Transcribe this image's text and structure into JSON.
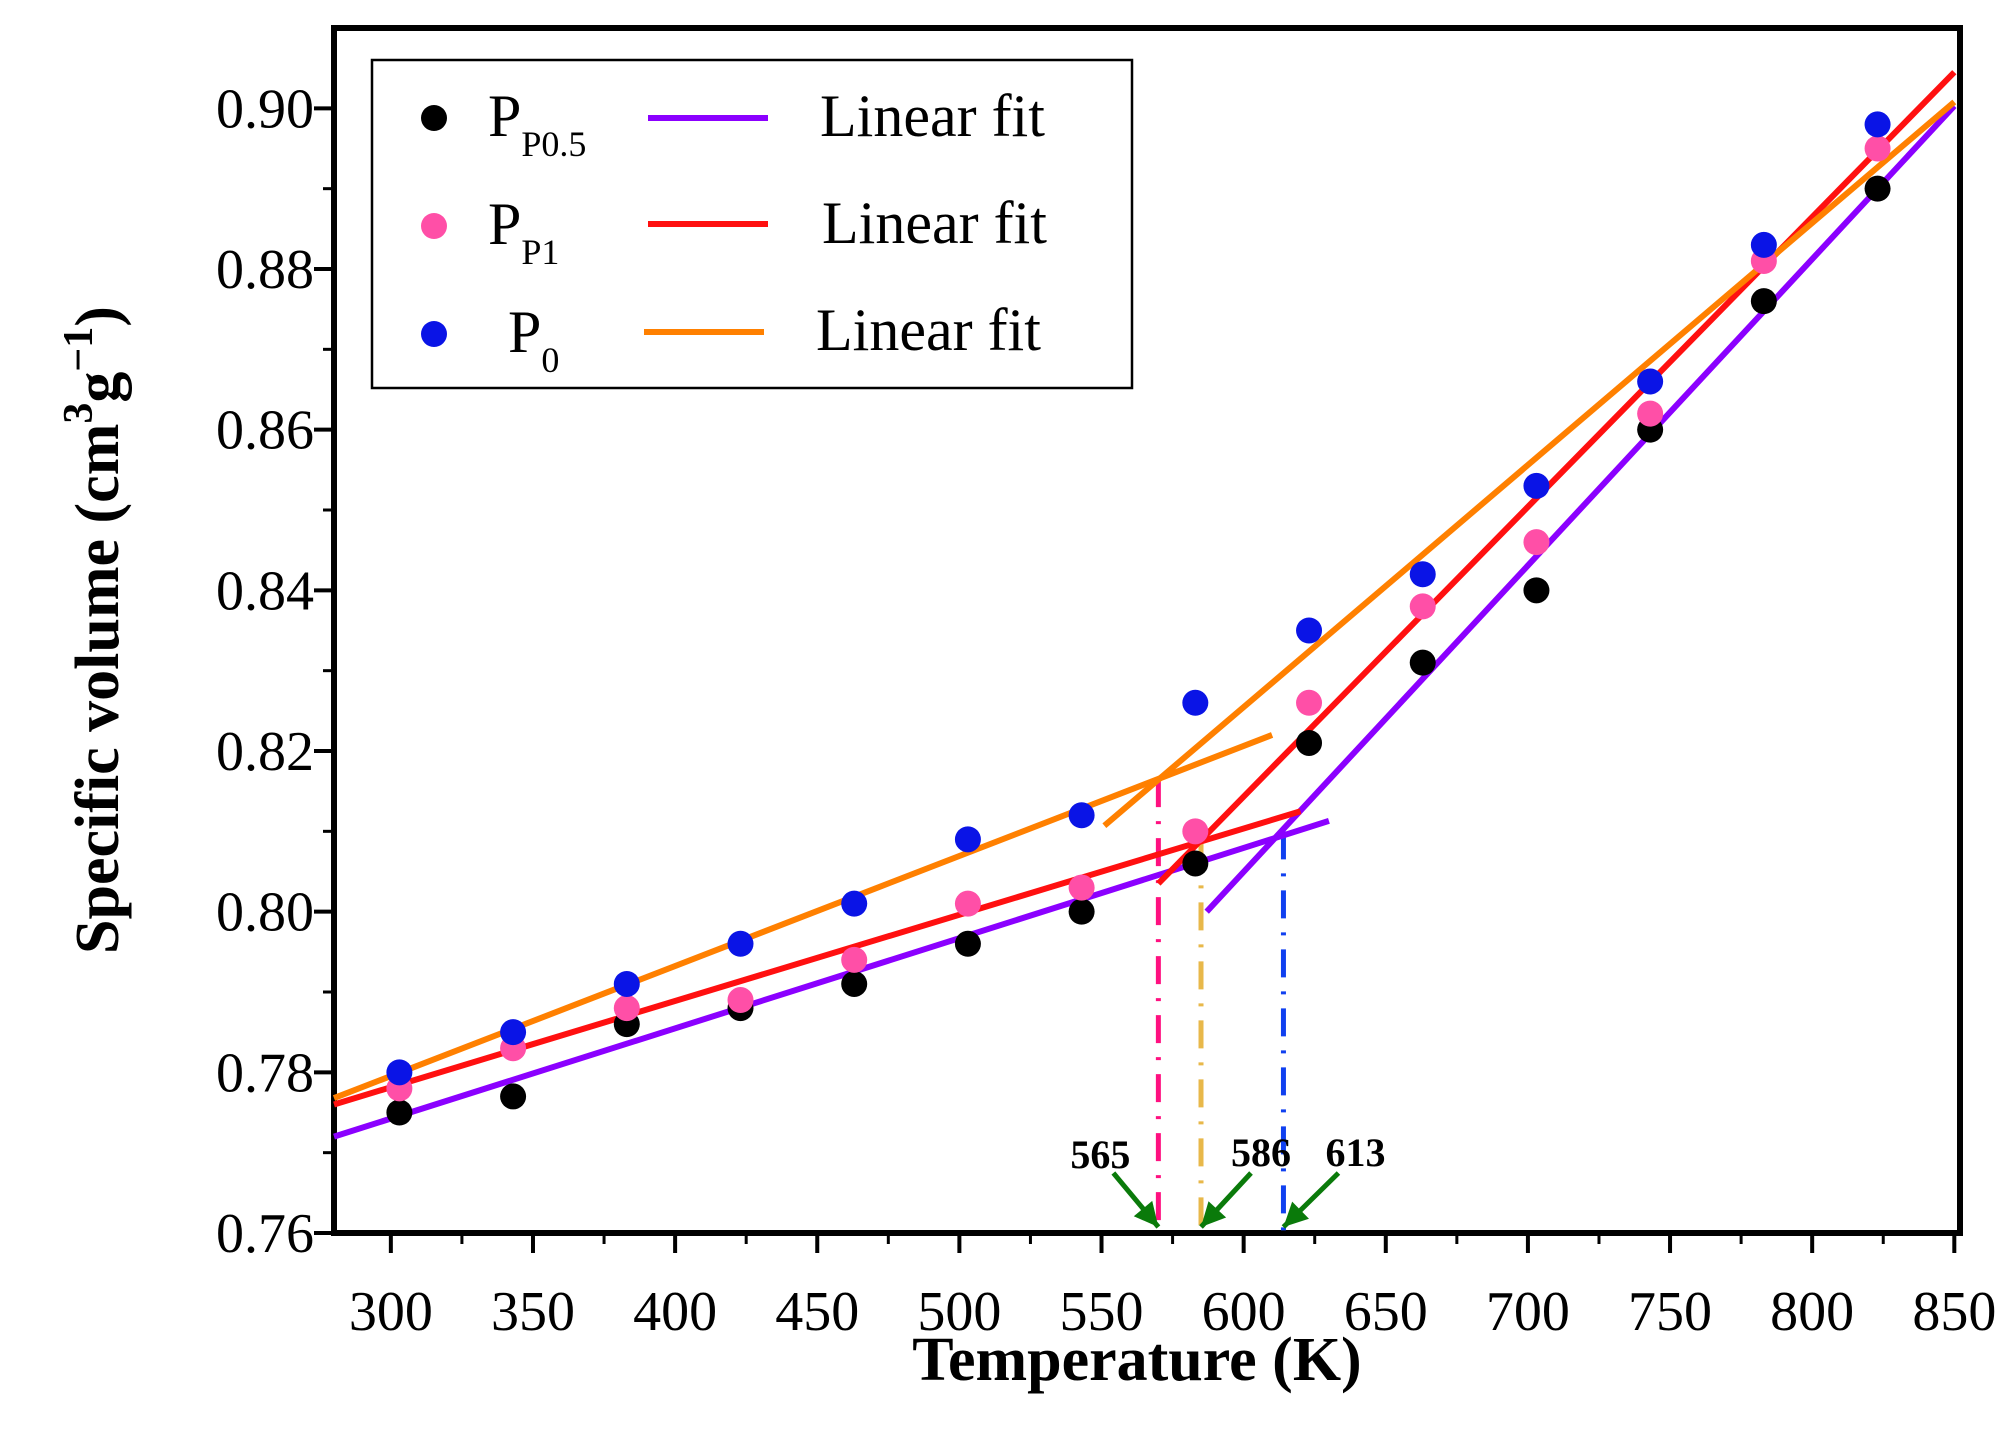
{
  "chart_data": {
    "type": "scatter",
    "title": "",
    "xlabel": "Temperature (K)",
    "ylabel": "Specific volume (cm",
    "ylabel_sup1": "3",
    "ylabel_mid": "g",
    "ylabel_sup2": "−1",
    "ylabel_end": ")",
    "xlim": [
      280,
      852
    ],
    "ylim": [
      0.76,
      0.91
    ],
    "xticks": [
      300,
      350,
      400,
      450,
      500,
      550,
      600,
      650,
      700,
      750,
      800,
      850
    ],
    "xtick_labels": [
      "300",
      "350",
      "400",
      "450",
      "500",
      "550",
      "600",
      "650",
      "700",
      "750",
      "800",
      "850"
    ],
    "yticks": [
      0.76,
      0.78,
      0.8,
      0.82,
      0.84,
      0.86,
      0.88,
      0.9
    ],
    "ytick_labels": [
      "0.76",
      "0.78",
      "0.80",
      "0.82",
      "0.84",
      "0.86",
      "0.88",
      "0.90"
    ],
    "legend_position": "top-left",
    "series": [
      {
        "name": "PP0.5",
        "label_main": "P",
        "label_sub": "P0.5",
        "color": "#000000",
        "x": [
          303,
          343,
          383,
          423,
          463,
          503,
          543,
          583,
          623,
          663,
          703,
          743,
          783,
          823
        ],
        "y": [
          0.775,
          0.777,
          0.786,
          0.788,
          0.791,
          0.796,
          0.8,
          0.806,
          0.821,
          0.831,
          0.84,
          0.86,
          0.876,
          0.89
        ]
      },
      {
        "name": "PP1",
        "label_main": "P",
        "label_sub": "P1",
        "color": "#ff4fa7",
        "x": [
          303,
          343,
          383,
          423,
          463,
          503,
          543,
          583,
          623,
          663,
          703,
          743,
          783,
          823
        ],
        "y": [
          0.778,
          0.783,
          0.788,
          0.789,
          0.794,
          0.801,
          0.803,
          0.81,
          0.826,
          0.838,
          0.846,
          0.862,
          0.881,
          0.895
        ]
      },
      {
        "name": "P0",
        "label_main": "P",
        "label_sub": "0",
        "color": "#0a14e6",
        "x": [
          303,
          343,
          383,
          423,
          463,
          503,
          543,
          583,
          623,
          663,
          703,
          743,
          783,
          823
        ],
        "y": [
          0.78,
          0.785,
          0.791,
          0.796,
          0.801,
          0.809,
          0.812,
          0.826,
          0.835,
          0.842,
          0.853,
          0.866,
          0.883,
          0.898
        ]
      }
    ],
    "fits": [
      {
        "legend_label": "Linear fit",
        "color": "#8b00ff",
        "segments": [
          {
            "x": [
              280,
              630
            ],
            "y": [
              0.772,
              0.8113
            ]
          },
          {
            "x": [
              587,
              850
            ],
            "y": [
              0.8,
              0.9003
            ]
          }
        ]
      },
      {
        "legend_label": "Linear fit",
        "color": "#ff1010",
        "segments": [
          {
            "x": [
              280,
              620
            ],
            "y": [
              0.776,
              0.8125
            ]
          },
          {
            "x": [
              570,
              850
            ],
            "y": [
              0.8035,
              0.9045
            ]
          }
        ]
      },
      {
        "legend_label": "Linear fit",
        "color": "#ff8000",
        "segments": [
          {
            "x": [
              280,
              610
            ],
            "y": [
              0.7768,
              0.822
            ]
          },
          {
            "x": [
              551,
              850
            ],
            "y": [
              0.8107,
              0.9008
            ]
          }
        ]
      }
    ],
    "transitions": [
      {
        "label": "565",
        "x": 570,
        "y_top": 0.8165,
        "color": "#ff1080"
      },
      {
        "label": "586",
        "x": 585,
        "y_top": 0.8085,
        "color": "#e8b84a"
      },
      {
        "label": "613",
        "x": 614,
        "y_top": 0.81,
        "color": "#1040f0"
      }
    ],
    "annotation_arrow_color": "#0a7a0a"
  }
}
